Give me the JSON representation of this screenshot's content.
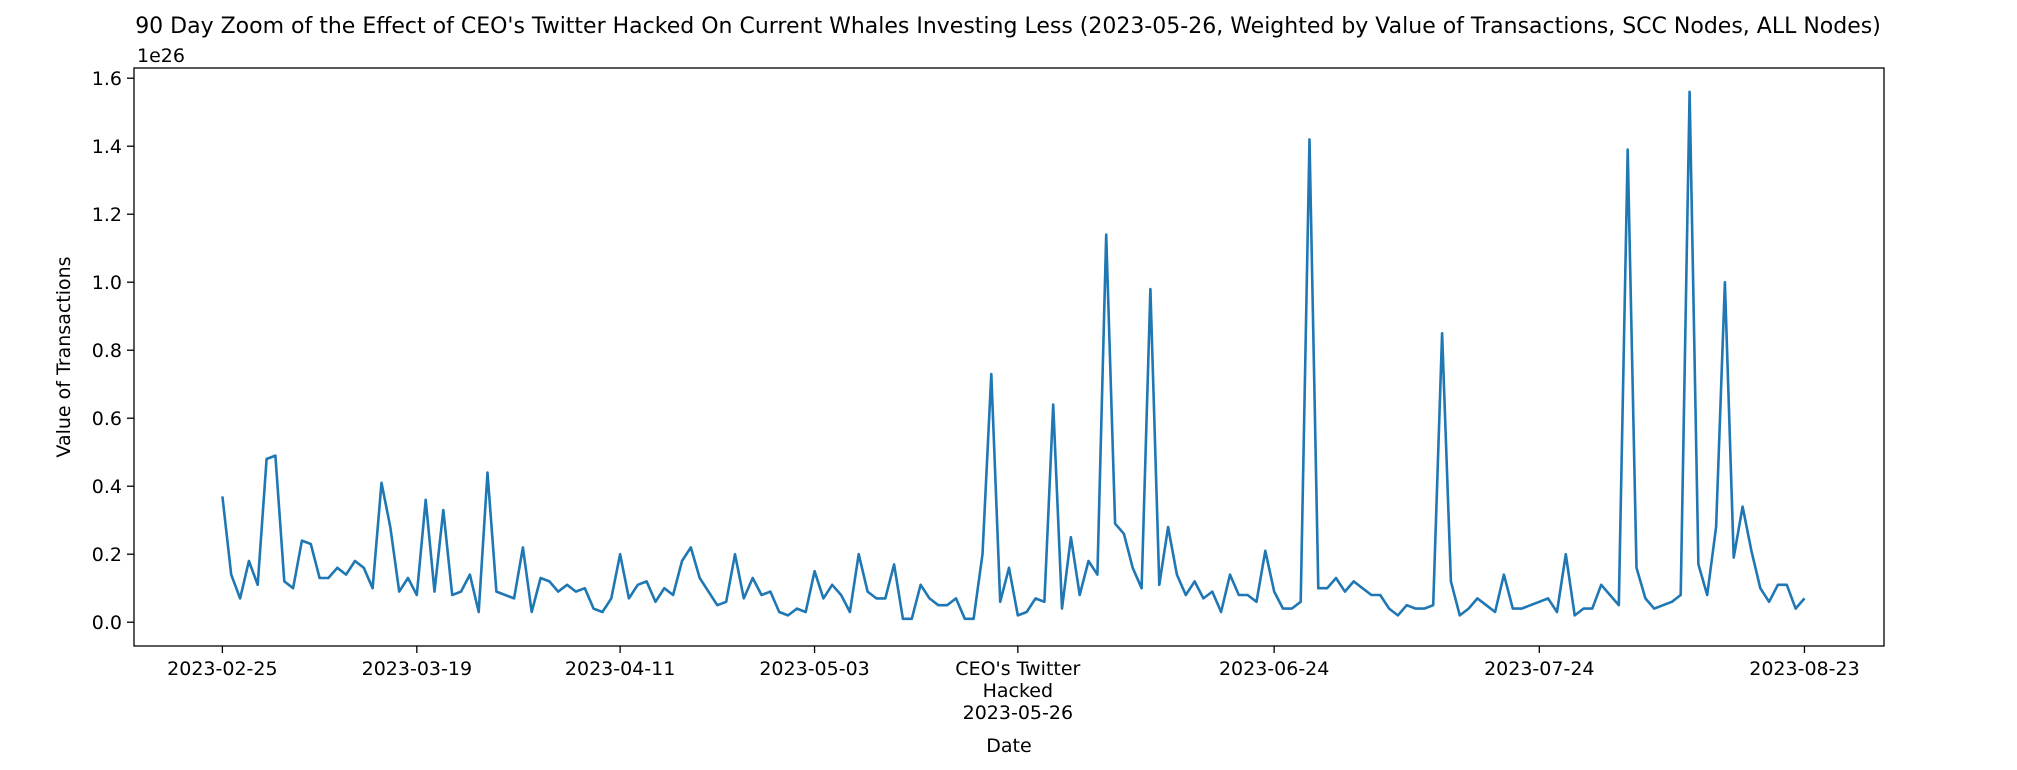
{
  "chart_data": {
    "type": "line",
    "title": "90 Day Zoom of the Effect of CEO's Twitter Hacked On Current Whales Investing Less (2023-05-26, Weighted by Value of Transactions, SCC Nodes, ALL Nodes)",
    "xlabel": "Date",
    "ylabel": "Value of Transactions",
    "y_offset_label": "1e26",
    "y_scale": 1e+26,
    "ylim": [
      -0.07,
      1.63
    ],
    "xlim": [
      "2023-02-15",
      "2023-09-01"
    ],
    "grid": false,
    "line_color": "#1f77b4",
    "x_ticks": [
      {
        "date": "2023-02-25",
        "label": "2023-02-25"
      },
      {
        "date": "2023-03-19",
        "label": "2023-03-19"
      },
      {
        "date": "2023-04-11",
        "label": "2023-04-11"
      },
      {
        "date": "2023-05-03",
        "label": "2023-05-03"
      },
      {
        "date": "2023-05-26",
        "label": "CEO's Twitter\nHacked\n2023-05-26"
      },
      {
        "date": "2023-06-24",
        "label": "2023-06-24"
      },
      {
        "date": "2023-07-24",
        "label": "2023-07-24"
      },
      {
        "date": "2023-08-23",
        "label": "2023-08-23"
      }
    ],
    "y_ticks": [
      "0.0",
      "0.2",
      "0.4",
      "0.6",
      "0.8",
      "1.0",
      "1.2",
      "1.4",
      "1.6"
    ],
    "series": [
      {
        "name": "",
        "x_start": "2023-02-25",
        "x_end": "2023-08-23",
        "values": [
          0.37,
          0.14,
          0.07,
          0.18,
          0.11,
          0.48,
          0.49,
          0.12,
          0.1,
          0.24,
          0.23,
          0.13,
          0.13,
          0.16,
          0.14,
          0.18,
          0.16,
          0.1,
          0.41,
          0.28,
          0.09,
          0.13,
          0.08,
          0.36,
          0.09,
          0.33,
          0.08,
          0.09,
          0.14,
          0.03,
          0.44,
          0.09,
          0.08,
          0.07,
          0.22,
          0.03,
          0.13,
          0.12,
          0.09,
          0.11,
          0.09,
          0.1,
          0.04,
          0.03,
          0.07,
          0.2,
          0.07,
          0.11,
          0.12,
          0.06,
          0.1,
          0.08,
          0.18,
          0.22,
          0.13,
          0.09,
          0.05,
          0.06,
          0.2,
          0.07,
          0.13,
          0.08,
          0.09,
          0.03,
          0.02,
          0.04,
          0.03,
          0.15,
          0.07,
          0.11,
          0.08,
          0.03,
          0.2,
          0.09,
          0.07,
          0.07,
          0.17,
          0.01,
          0.01,
          0.11,
          0.07,
          0.05,
          0.05,
          0.07,
          0.01,
          0.01,
          0.2,
          0.73,
          0.06,
          0.16,
          0.02,
          0.03,
          0.07,
          0.06,
          0.64,
          0.04,
          0.25,
          0.08,
          0.18,
          0.14,
          1.14,
          0.29,
          0.26,
          0.16,
          0.1,
          0.98,
          0.11,
          0.28,
          0.14,
          0.08,
          0.12,
          0.07,
          0.09,
          0.03,
          0.14,
          0.08,
          0.08,
          0.06,
          0.21,
          0.09,
          0.04,
          0.04,
          0.06,
          1.42,
          0.1,
          0.1,
          0.13,
          0.09,
          0.12,
          0.1,
          0.08,
          0.08,
          0.04,
          0.02,
          0.05,
          0.04,
          0.04,
          0.05,
          0.85,
          0.12,
          0.02,
          0.04,
          0.07,
          0.05,
          0.03,
          0.14,
          0.04,
          0.04,
          0.05,
          0.06,
          0.07,
          0.03,
          0.2,
          0.02,
          0.04,
          0.04,
          0.11,
          0.08,
          0.05,
          1.39,
          0.16,
          0.07,
          0.04,
          0.05,
          0.06,
          0.08,
          1.56,
          0.17,
          0.08,
          0.28,
          1.0,
          0.19,
          0.34,
          0.21,
          0.1,
          0.06,
          0.11,
          0.11,
          0.04,
          0.07
        ]
      }
    ]
  }
}
